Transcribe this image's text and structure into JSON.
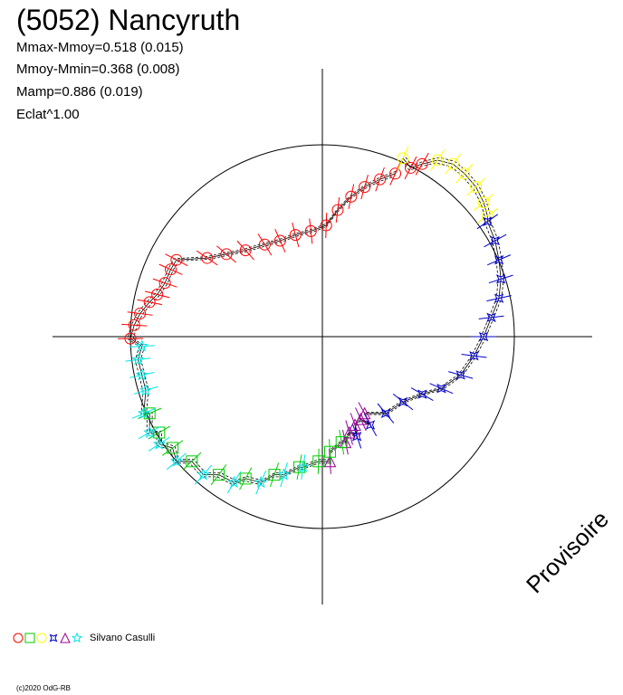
{
  "header": {
    "title": "(5052) Nancyruth",
    "stats": [
      "Mmax-Mmoy=0.518 (0.015)",
      "Mmoy-Mmin=0.368 (0.008)",
      "Mamp=0.886 (0.019)",
      "Eclat^1.00"
    ]
  },
  "legend": {
    "symbols": [
      {
        "shape": "circle",
        "color": "#ff0000"
      },
      {
        "shape": "square",
        "color": "#00cc00"
      },
      {
        "shape": "circle",
        "color": "#ffff00"
      },
      {
        "shape": "star4",
        "color": "#0000cc"
      },
      {
        "shape": "triangle",
        "color": "#990099"
      },
      {
        "shape": "star",
        "color": "#00e5e5"
      }
    ],
    "observer": "Silvano Casulli"
  },
  "watermark": "Provisoire",
  "copyright": "(c)2020 OdG-RB",
  "chart_data": {
    "type": "scatter",
    "coordinate_system": "polar",
    "reference_circle_radius": 1.0,
    "series": [
      {
        "marker": "circle",
        "color": "#ff0000",
        "points": [
          [
            -1.0,
            -0.01
          ],
          [
            -0.98,
            0.06
          ],
          [
            -0.95,
            0.12
          ],
          [
            -0.9,
            0.18
          ],
          [
            -0.86,
            0.22
          ],
          [
            -0.82,
            0.28
          ],
          [
            -0.79,
            0.35
          ],
          [
            -0.76,
            0.4
          ],
          [
            -0.6,
            0.41
          ],
          [
            -0.5,
            0.43
          ],
          [
            -0.4,
            0.45
          ],
          [
            -0.3,
            0.48
          ],
          [
            -0.22,
            0.5
          ],
          [
            -0.14,
            0.53
          ],
          [
            -0.06,
            0.55
          ],
          [
            0.02,
            0.58
          ],
          [
            0.08,
            0.66
          ],
          [
            0.15,
            0.73
          ],
          [
            0.22,
            0.78
          ],
          [
            0.3,
            0.82
          ],
          [
            0.38,
            0.85
          ],
          [
            0.46,
            0.88
          ],
          [
            0.52,
            0.9
          ]
        ]
      },
      {
        "marker": "circle",
        "color": "#ffff00",
        "points": [
          [
            0.42,
            0.93
          ],
          [
            0.6,
            0.92
          ],
          [
            0.68,
            0.9
          ],
          [
            0.74,
            0.85
          ],
          [
            0.8,
            0.78
          ],
          [
            0.84,
            0.7
          ],
          [
            0.86,
            0.63
          ]
        ]
      },
      {
        "marker": "star4",
        "color": "#0000cc",
        "points": [
          [
            0.86,
            0.6
          ],
          [
            0.9,
            0.5
          ],
          [
            0.92,
            0.4
          ],
          [
            0.93,
            0.3
          ],
          [
            0.92,
            0.2
          ],
          [
            0.88,
            0.1
          ],
          [
            0.84,
            0.0
          ],
          [
            0.79,
            -0.1
          ],
          [
            0.72,
            -0.2
          ],
          [
            0.62,
            -0.27
          ],
          [
            0.52,
            -0.3
          ],
          [
            0.42,
            -0.34
          ],
          [
            0.33,
            -0.4
          ],
          [
            0.25,
            -0.46
          ],
          [
            0.18,
            -0.52
          ]
        ]
      },
      {
        "marker": "triangle",
        "color": "#990099",
        "points": [
          [
            0.22,
            -0.4
          ],
          [
            0.2,
            -0.43
          ],
          [
            0.17,
            -0.46
          ],
          [
            0.14,
            -0.5
          ],
          [
            0.12,
            -0.55
          ],
          [
            0.04,
            -0.65
          ]
        ]
      },
      {
        "marker": "square",
        "color": "#00cc00",
        "points": [
          [
            0.1,
            -0.55
          ],
          [
            0.04,
            -0.6
          ],
          [
            -0.02,
            -0.65
          ],
          [
            -0.12,
            -0.68
          ],
          [
            -0.25,
            -0.72
          ],
          [
            -0.4,
            -0.74
          ],
          [
            -0.54,
            -0.72
          ],
          [
            -0.68,
            -0.65
          ],
          [
            -0.78,
            -0.58
          ],
          [
            -0.85,
            -0.5
          ],
          [
            -0.9,
            -0.4
          ]
        ]
      },
      {
        "marker": "star",
        "color": "#00e5e5",
        "points": [
          [
            -0.94,
            -0.05
          ],
          [
            -0.96,
            -0.12
          ],
          [
            -0.94,
            -0.2
          ],
          [
            -0.92,
            -0.28
          ],
          [
            -0.93,
            -0.4
          ],
          [
            -0.9,
            -0.5
          ],
          [
            -0.85,
            -0.56
          ],
          [
            -0.76,
            -0.65
          ],
          [
            -0.62,
            -0.72
          ],
          [
            -0.46,
            -0.76
          ],
          [
            -0.32,
            -0.76
          ],
          [
            -0.2,
            -0.72
          ],
          [
            -0.1,
            -0.68
          ]
        ]
      }
    ]
  }
}
